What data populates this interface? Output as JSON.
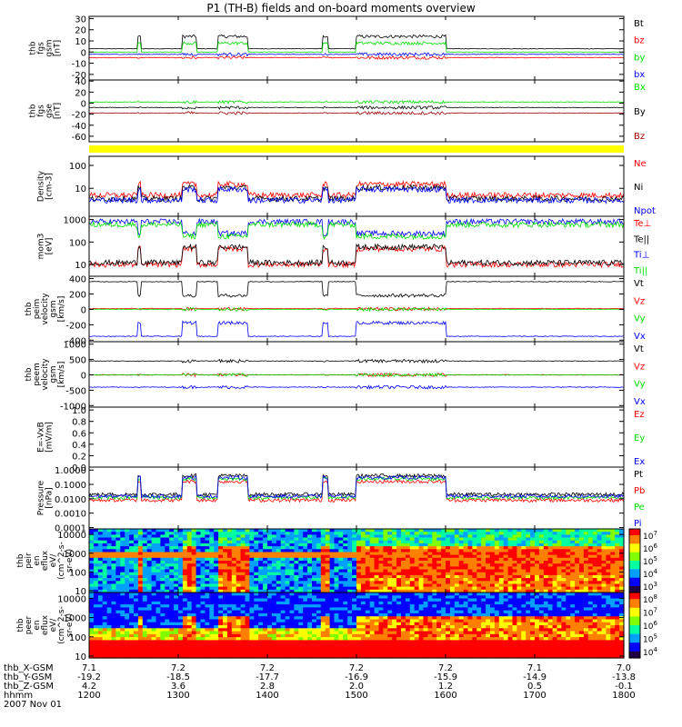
{
  "title": "P1 (TH-B) fields and on-board moments overview",
  "colors": {
    "black": "#000000",
    "red": "#ff0000",
    "green": "#00e000",
    "blue": "#0000ff",
    "darkred": "#a00000",
    "yellow": "#ffff00"
  },
  "chart_data": [
    {
      "id": "p1",
      "type": "line",
      "ylabels": [
        "thb",
        "fgs",
        "gsm",
        "[nT]"
      ],
      "yticks": [
        "30",
        "20",
        "10",
        "0",
        "-10",
        "-20"
      ],
      "ylim": [
        -25,
        32
      ],
      "series": [
        {
          "name": "Bt",
          "color": "#000000",
          "base": 3
        },
        {
          "name": "bz",
          "color": "#ff0000",
          "base": -5
        },
        {
          "name": "by",
          "color": "#00e000",
          "base": 0
        },
        {
          "name": "bx",
          "color": "#0000ff",
          "base": -2
        }
      ]
    },
    {
      "id": "p2",
      "type": "line",
      "ylabels": [
        "thb",
        "fgs",
        "gse",
        "[nT]"
      ],
      "yticks": [
        "40",
        "20",
        "0",
        "-20",
        "-40",
        "-60"
      ],
      "ylim": [
        -70,
        42
      ],
      "series": [
        {
          "name": "Bx",
          "color": "#00e000",
          "base": 2
        },
        {
          "name": "By",
          "color": "#000000",
          "base": -8
        },
        {
          "name": "Bz",
          "color": "#a00000",
          "base": -18
        }
      ]
    },
    {
      "id": "p3",
      "type": "line",
      "ylabels": [
        "Density",
        "[cm-3]"
      ],
      "yticks": [
        "100",
        "10"
      ],
      "ylim": [
        0.6,
        250
      ],
      "log": true,
      "series": [
        {
          "name": "Ne",
          "color": "#ff0000",
          "base": 5
        },
        {
          "name": "Ni",
          "color": "#000000",
          "base": 3.5
        },
        {
          "name": "Npot",
          "color": "#0000ff",
          "base": 3
        }
      ]
    },
    {
      "id": "p4",
      "type": "line",
      "ylabels": [
        "mom3",
        "[eV]"
      ],
      "yticks": [
        "1000",
        "100",
        "10"
      ],
      "ylim": [
        3,
        1400
      ],
      "log": true,
      "series": [
        {
          "name": "Te⊥",
          "color": "#ff0000",
          "base": 10
        },
        {
          "name": "Te||",
          "color": "#000000",
          "base": 12
        },
        {
          "name": "Ti⊥",
          "color": "#0000ff",
          "base": 800
        },
        {
          "name": "Ti||",
          "color": "#00e000",
          "base": 600
        }
      ]
    },
    {
      "id": "p5",
      "type": "line",
      "ylabels": [
        "thb",
        "peim",
        "velocity",
        "gsm",
        "[km/s]"
      ],
      "yticks": [
        "400",
        "200",
        "0",
        "-200",
        "-400"
      ],
      "ylim": [
        -420,
        430
      ],
      "series": [
        {
          "name": "Vt",
          "color": "#000000",
          "base": 360
        },
        {
          "name": "Vz",
          "color": "#ff0000",
          "base": 10
        },
        {
          "name": "Vy",
          "color": "#00e000",
          "base": 0
        },
        {
          "name": "Vx",
          "color": "#0000ff",
          "base": -350
        }
      ]
    },
    {
      "id": "p6",
      "type": "line",
      "ylabels": [
        "thb",
        "peem",
        "velocity",
        "gsm",
        "[km/s]"
      ],
      "yticks": [
        "1000",
        "500",
        "0",
        "-500",
        "-1000"
      ],
      "ylim": [
        -1050,
        1080
      ],
      "series": [
        {
          "name": "Vt",
          "color": "#000000",
          "base": 450
        },
        {
          "name": "Vz",
          "color": "#ff0000",
          "base": 0
        },
        {
          "name": "Vy",
          "color": "#00e000",
          "base": 0
        },
        {
          "name": "Vx",
          "color": "#0000ff",
          "base": -400
        }
      ]
    },
    {
      "id": "p7",
      "type": "line",
      "ylabels": [
        "E=-VxB",
        "[mV/m]"
      ],
      "yticks": [
        "1.0",
        "0.8",
        "0.6",
        "0.4",
        "0.2",
        "0.0"
      ],
      "ylim": [
        0,
        1.05
      ],
      "series": [
        {
          "name": "Ez",
          "color": "#ff0000"
        },
        {
          "name": "Ey",
          "color": "#00e000"
        },
        {
          "name": "Ex",
          "color": "#0000ff"
        }
      ]
    },
    {
      "id": "p8",
      "type": "line",
      "ylabels": [
        "Pressure",
        "[nPa]"
      ],
      "yticks": [
        "1.0000",
        "0.1000",
        "0.0100",
        "0.0010",
        "0.0001"
      ],
      "ylim": [
        8e-05,
        1.6
      ],
      "log": true,
      "series": [
        {
          "name": "Pt",
          "color": "#000000",
          "base": 0.02
        },
        {
          "name": "Pb",
          "color": "#ff0000",
          "base": 0.008
        },
        {
          "name": "Pe",
          "color": "#00e000",
          "base": 0.012
        },
        {
          "name": "Pi",
          "color": "#0000ff",
          "base": 0.015
        }
      ]
    },
    {
      "id": "p9",
      "type": "heatmap",
      "ylabels": [
        "thb",
        "peir",
        "en",
        "eflux",
        "eV/",
        "(cm^2-s-",
        "sr-eV)"
      ],
      "yticks": [
        "10000",
        "1000",
        "100",
        "10"
      ],
      "ylim": [
        8,
        20000
      ],
      "log": true,
      "colorbar": [
        "10^7",
        "10^6",
        "10^5",
        "10^4",
        "10^3"
      ]
    },
    {
      "id": "p10",
      "type": "heatmap",
      "ylabels": [
        "thb",
        "peer",
        "en",
        "eflux",
        "eV/",
        "(cm^2-s-",
        "sr-eV)"
      ],
      "yticks": [
        "10000",
        "1000",
        "100",
        "10"
      ],
      "ylim": [
        8,
        20000
      ],
      "log": true,
      "colorbar": [
        "10^8",
        "10^7",
        "10^6",
        "10^5",
        "10^4"
      ]
    }
  ],
  "xaxis": {
    "rowlabels": [
      "thb_X-GSM",
      "thb_Y-GSM",
      "thb_Z-GSM",
      "hhmm",
      "2007 Nov 01"
    ],
    "columns": [
      {
        "x": "7.1",
        "y": "-19.2",
        "z": "4.2",
        "hhmm": "1200"
      },
      {
        "x": "7.2",
        "y": "-18.5",
        "z": "3.6",
        "hhmm": "1300"
      },
      {
        "x": "7.2",
        "y": "-17.7",
        "z": "2.8",
        "hhmm": "1400"
      },
      {
        "x": "7.2",
        "y": "-16.9",
        "z": "2.0",
        "hhmm": "1500"
      },
      {
        "x": "7.2",
        "y": "-15.9",
        "z": "1.2",
        "hhmm": "1600"
      },
      {
        "x": "7.1",
        "y": "-14.9",
        "z": "0.5",
        "hhmm": "1700"
      },
      {
        "x": "7.0",
        "y": "-13.8",
        "z": "-0.1",
        "hhmm": "1800"
      }
    ],
    "range": [
      1200,
      1800
    ]
  }
}
